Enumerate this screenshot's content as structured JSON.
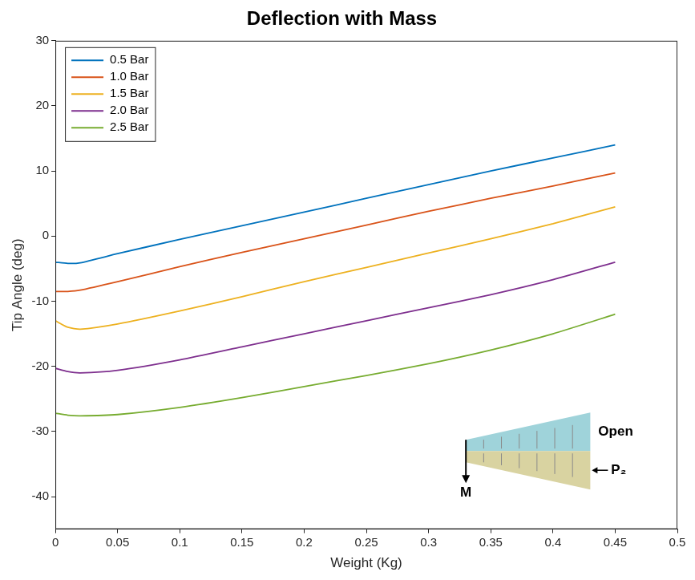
{
  "chart_data": {
    "type": "line",
    "title": "Deflection with Mass",
    "x_label": "Weight (Kg)",
    "y_label": "Tip Angle (deg)",
    "x": [
      0,
      0.01,
      0.02,
      0.05,
      0.1,
      0.15,
      0.2,
      0.25,
      0.3,
      0.35,
      0.4,
      0.45
    ],
    "series": [
      {
        "name": "0.5 Bar",
        "color": "#0072BD",
        "values": [
          -4,
          -4.2,
          -4.1,
          -2.7,
          -0.5,
          1.6,
          3.7,
          5.8,
          7.9,
          10,
          12,
          14
        ]
      },
      {
        "name": "1.0 Bar",
        "color": "#D95319",
        "values": [
          -8.5,
          -8.5,
          -8.3,
          -7,
          -4.7,
          -2.5,
          -0.4,
          1.7,
          3.8,
          5.8,
          7.7,
          9.7
        ]
      },
      {
        "name": "1.5 Bar",
        "color": "#EDB120",
        "values": [
          -13,
          -14,
          -14.3,
          -13.5,
          -11.5,
          -9.3,
          -7,
          -4.8,
          -2.6,
          -0.4,
          1.9,
          4.5
        ]
      },
      {
        "name": "2.0 Bar",
        "color": "#7E2F8E",
        "values": [
          -20.3,
          -20.8,
          -21,
          -20.6,
          -19,
          -17,
          -15,
          -13,
          -11,
          -9,
          -6.7,
          -4
        ]
      },
      {
        "name": "2.5 Bar",
        "color": "#77AC30",
        "values": [
          -27.2,
          -27.5,
          -27.6,
          -27.4,
          -26.3,
          -24.8,
          -23.1,
          -21.4,
          -19.6,
          -17.5,
          -15,
          -12
        ]
      }
    ],
    "xlim": [
      0,
      0.5
    ],
    "xticks": [
      0,
      0.05,
      0.1,
      0.15,
      0.2,
      0.25,
      0.3,
      0.35,
      0.4,
      0.45,
      0.5
    ],
    "ylim": [
      -45,
      30
    ],
    "yticks": [
      -40,
      -30,
      -20,
      -10,
      0,
      10,
      20,
      30
    ],
    "grid": false,
    "legend": "upper left",
    "annotations": [
      "Open",
      "P₂",
      "M"
    ]
  }
}
